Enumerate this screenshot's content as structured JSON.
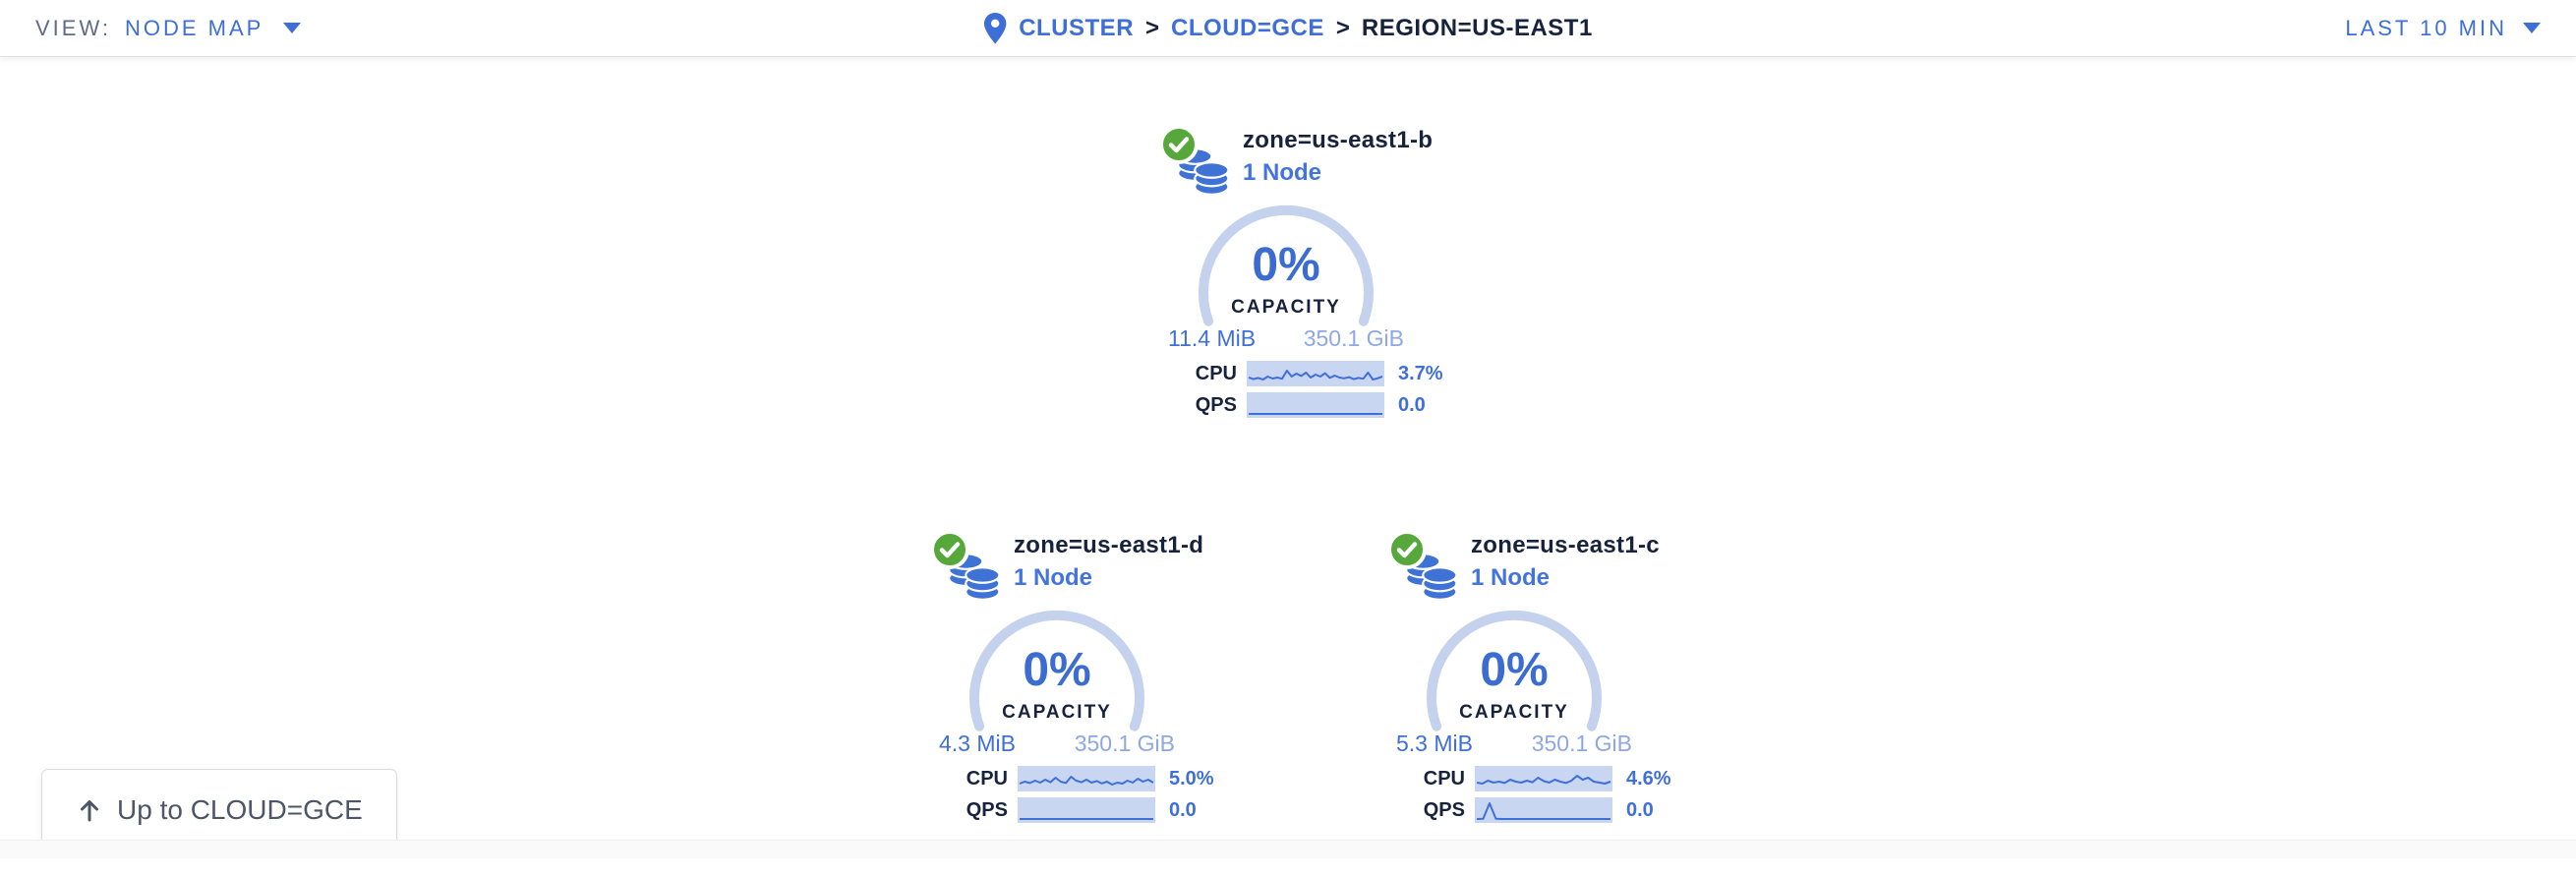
{
  "colors": {
    "accent_blue": "#3E6ED8",
    "dark_navy": "#17223C",
    "muted_gray": "#5F6C87",
    "gauge_arc": "#C5D2EE",
    "pct_blue": "#3B6CD1",
    "node_blue": "#4273DF",
    "used_blue": "#3F6FD8",
    "total_blue": "#8FA8E2",
    "spark_bg": "#C9D6F2",
    "spark_line": "#3F6FD8",
    "status_green": "#55A839",
    "button_text": "#4D5566"
  },
  "toolbar": {
    "view_label": "VIEW:",
    "view_value": "NODE MAP",
    "time_range": "LAST 10 MIN"
  },
  "breadcrumb": {
    "separator": ">",
    "items": [
      {
        "label": "CLUSTER"
      },
      {
        "label": "CLOUD=GCE"
      },
      {
        "label": "REGION=US-EAST1"
      }
    ]
  },
  "zones": [
    {
      "name": "zone=us-east1-b",
      "node_count": "1 Node",
      "status": "healthy",
      "capacity_pct": "0%",
      "capacity_label": "CAPACITY",
      "capacity_used": "11.4 MiB",
      "capacity_total": "350.1 GiB",
      "cpu_label": "CPU",
      "cpu_value": "3.7%",
      "cpu_spark": [
        0.3,
        0.22,
        0.28,
        0.2,
        0.35,
        0.25,
        0.3,
        0.24,
        0.65,
        0.35,
        0.5,
        0.38,
        0.55,
        0.3,
        0.45,
        0.35,
        0.52,
        0.28,
        0.4,
        0.3,
        0.26,
        0.32,
        0.22,
        0.28,
        0.24,
        0.55,
        0.2,
        0.26,
        0.35
      ],
      "qps_label": "QPS",
      "qps_value": "0.0",
      "qps_spark": [
        0.05,
        0.05,
        0.05,
        0.05,
        0.05,
        0.05,
        0.05,
        0.05,
        0.05,
        0.05,
        0.05,
        0.05,
        0.05,
        0.05,
        0.05,
        0.05,
        0.05,
        0.05,
        0.05,
        0.05
      ]
    },
    {
      "name": "zone=us-east1-d",
      "node_count": "1 Node",
      "status": "healthy",
      "capacity_pct": "0%",
      "capacity_label": "CAPACITY",
      "capacity_used": "4.3 MiB",
      "capacity_total": "350.1 GiB",
      "cpu_label": "CPU",
      "cpu_value": "5.0%",
      "cpu_spark": [
        0.25,
        0.35,
        0.28,
        0.4,
        0.3,
        0.45,
        0.32,
        0.55,
        0.35,
        0.28,
        0.6,
        0.4,
        0.32,
        0.45,
        0.3,
        0.38,
        0.26,
        0.35,
        0.2,
        0.3,
        0.25,
        0.4,
        0.3,
        0.5,
        0.35,
        0.45,
        0.3
      ],
      "qps_label": "QPS",
      "qps_value": "0.0",
      "qps_spark": [
        0.05,
        0.05,
        0.05,
        0.05,
        0.05,
        0.05,
        0.05,
        0.05,
        0.05,
        0.05,
        0.05,
        0.05,
        0.05,
        0.05,
        0.05,
        0.05,
        0.05,
        0.05,
        0.05,
        0.05
      ]
    },
    {
      "name": "zone=us-east1-c",
      "node_count": "1 Node",
      "status": "healthy",
      "capacity_pct": "0%",
      "capacity_label": "CAPACITY",
      "capacity_used": "5.3 MiB",
      "capacity_total": "350.1 GiB",
      "cpu_label": "CPU",
      "cpu_value": "4.6%",
      "cpu_spark": [
        0.3,
        0.25,
        0.4,
        0.3,
        0.35,
        0.28,
        0.45,
        0.35,
        0.3,
        0.4,
        0.32,
        0.55,
        0.38,
        0.3,
        0.45,
        0.35,
        0.28,
        0.4,
        0.65,
        0.45,
        0.55,
        0.35,
        0.3,
        0.25,
        0.35
      ],
      "qps_label": "QPS",
      "qps_value": "0.0",
      "qps_spark": [
        0.05,
        0.06,
        0.85,
        0.06,
        0.05,
        0.05,
        0.05,
        0.05,
        0.05,
        0.05,
        0.05,
        0.05,
        0.05,
        0.05,
        0.05,
        0.05,
        0.05,
        0.05,
        0.05,
        0.05,
        0.05,
        0.05
      ]
    }
  ],
  "up_button": {
    "label": "Up to CLOUD=GCE"
  }
}
